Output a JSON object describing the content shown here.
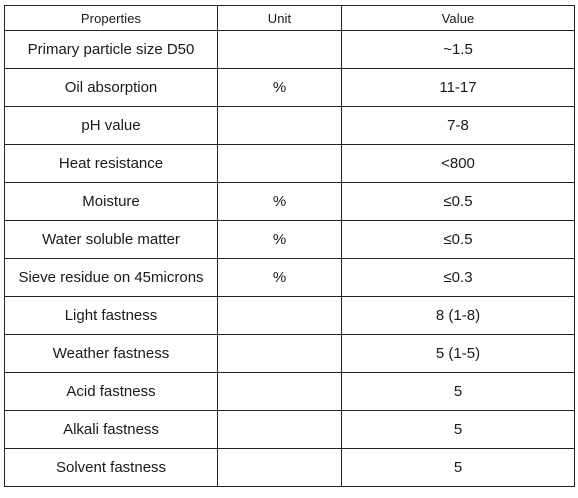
{
  "table": {
    "headers": [
      "Properties",
      "Unit",
      "Value"
    ],
    "rows": [
      {
        "property": "Primary particle size D50",
        "unit": "",
        "value": "~1.5"
      },
      {
        "property": "Oil absorption",
        "unit": "%",
        "value": "11-17"
      },
      {
        "property": "pH value",
        "unit": "",
        "value": "7-8"
      },
      {
        "property": "Heat resistance",
        "unit": "",
        "value": "<800"
      },
      {
        "property": "Moisture",
        "unit": "%",
        "value": "≤0.5"
      },
      {
        "property": "Water soluble matter",
        "unit": "%",
        "value": "≤0.5"
      },
      {
        "property": "Sieve residue on 45microns",
        "unit": "%",
        "value": "≤0.3"
      },
      {
        "property": "Light fastness",
        "unit": "",
        "value": "8 (1-8)"
      },
      {
        "property": "Weather fastness",
        "unit": "",
        "value": "5 (1-5)"
      },
      {
        "property": "Acid fastness",
        "unit": "",
        "value": "5"
      },
      {
        "property": "Alkali fastness",
        "unit": "",
        "value": "5"
      },
      {
        "property": "Solvent fastness",
        "unit": "",
        "value": "5"
      }
    ]
  }
}
